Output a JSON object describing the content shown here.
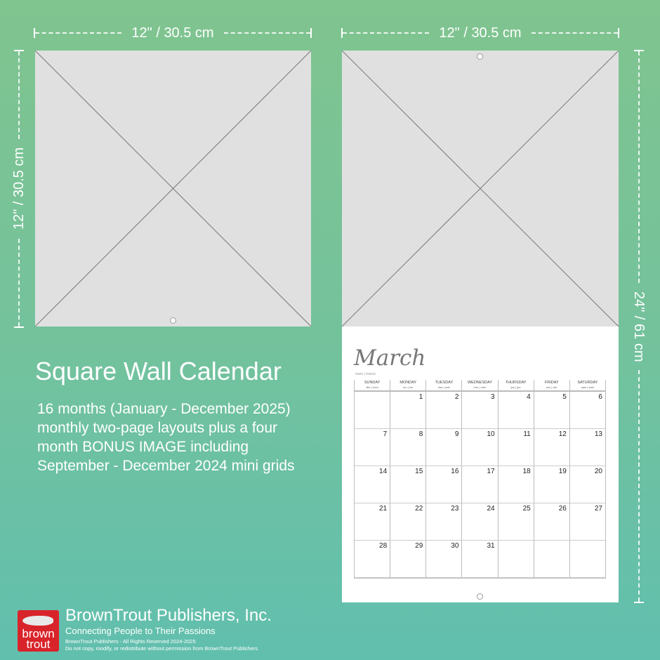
{
  "dimensions": {
    "width_top_left": "12\" / 30.5 cm",
    "width_top_right": "12\" / 30.5 cm",
    "height_left": "12\" / 30.5 cm",
    "height_right": "24\" / 61 cm"
  },
  "product": {
    "title": "Square Wall Calendar",
    "description": [
      "16 months (January - December 2025)",
      "monthly two-page layouts plus a four",
      "month BONUS IMAGE including",
      "September - December 2024 mini grids"
    ]
  },
  "calendar": {
    "month": "March",
    "month_sub": "mars | marzo",
    "days": [
      {
        "name": "SUNDAY",
        "sub": "dim | dom"
      },
      {
        "name": "MONDAY",
        "sub": "lun | lun"
      },
      {
        "name": "TUESDAY",
        "sub": "mar | mar"
      },
      {
        "name": "WEDNESDAY",
        "sub": "mer | mier"
      },
      {
        "name": "THURSDAY",
        "sub": "jue | jue"
      },
      {
        "name": "FRIDAY",
        "sub": "ven | vier"
      },
      {
        "name": "SATURDAY",
        "sub": "sam | sám"
      }
    ],
    "cells": [
      "",
      "1",
      "2",
      "3",
      "4",
      "5",
      "6",
      "7",
      "8",
      "9",
      "10",
      "11",
      "12",
      "13",
      "14",
      "15",
      "16",
      "17",
      "18",
      "19",
      "20",
      "21",
      "22",
      "23",
      "24",
      "25",
      "26",
      "27",
      "28",
      "29",
      "30",
      "31",
      "",
      "",
      ""
    ]
  },
  "publisher": {
    "logo_text": "brown trout",
    "name": "BrownTrout Publishers, Inc.",
    "tagline": "Connecting People to Their Passions",
    "rights": "BrownTrout Publishers - All Rights Reserved 2024-2025",
    "notice": "Do not copy, modify, or redistribute without permission from BrownTrout Publishers"
  }
}
